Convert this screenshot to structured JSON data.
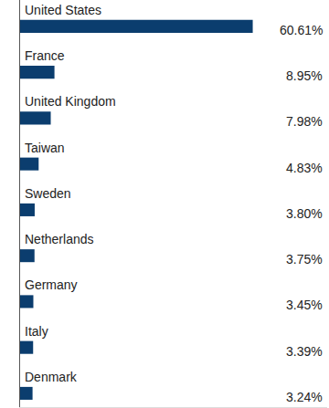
{
  "chart_data": {
    "type": "bar",
    "orientation": "horizontal",
    "categories": [
      "United States",
      "France",
      "United Kingdom",
      "Taiwan",
      "Sweden",
      "Netherlands",
      "Germany",
      "Italy",
      "Denmark"
    ],
    "values": [
      60.61,
      8.95,
      7.98,
      4.83,
      3.8,
      3.75,
      3.45,
      3.39,
      3.24
    ],
    "value_labels": [
      "60.61%",
      "8.95%",
      "7.98%",
      "4.83%",
      "3.80%",
      "3.75%",
      "3.45%",
      "3.39%",
      "3.24%"
    ],
    "color": "#0b3d6e",
    "xlim": [
      0,
      80
    ],
    "xticks": [
      0
    ],
    "tick_labels": false,
    "data_labels": true,
    "grid": false
  }
}
